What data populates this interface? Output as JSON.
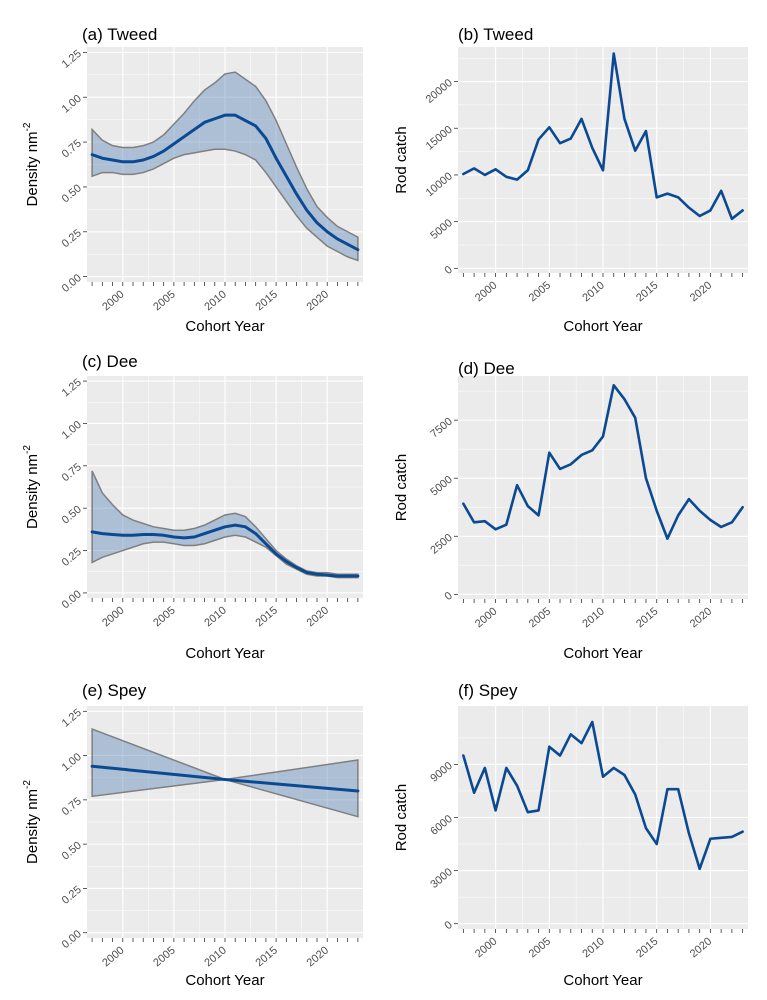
{
  "chart_data": [
    {
      "id": "a",
      "type": "line",
      "title": "(a) Tweed",
      "xlabel": "Cohort Year",
      "ylabel": "Density nm",
      "ylabel_superscript": "-2",
      "xlim": [
        1996.5,
        2023.5
      ],
      "ylim": [
        -0.03,
        1.28
      ],
      "xticks": [
        2000,
        2005,
        2010,
        2015,
        2020
      ],
      "xtick_labels": [
        "2000",
        "2005",
        "2010",
        "2015",
        "2020"
      ],
      "yticks": [
        0,
        0.25,
        0.5,
        0.75,
        1.0,
        1.25
      ],
      "ytick_labels": [
        "0.00",
        "0.25",
        "0.50",
        "0.75",
        "1.00",
        "1.25"
      ],
      "x": [
        1997,
        1998,
        1999,
        2000,
        2001,
        2002,
        2003,
        2004,
        2005,
        2006,
        2007,
        2008,
        2009,
        2010,
        2011,
        2012,
        2013,
        2014,
        2015,
        2016,
        2017,
        2018,
        2019,
        2020,
        2021,
        2022,
        2023
      ],
      "series": [
        {
          "name": "Upper",
          "role": "band_upper",
          "values": [
            0.82,
            0.76,
            0.73,
            0.72,
            0.72,
            0.73,
            0.75,
            0.79,
            0.85,
            0.91,
            0.98,
            1.04,
            1.08,
            1.13,
            1.14,
            1.1,
            1.06,
            0.98,
            0.87,
            0.74,
            0.61,
            0.49,
            0.39,
            0.33,
            0.28,
            0.25,
            0.22
          ]
        },
        {
          "name": "Lower",
          "role": "band_lower",
          "values": [
            0.56,
            0.58,
            0.58,
            0.57,
            0.57,
            0.58,
            0.6,
            0.63,
            0.66,
            0.68,
            0.69,
            0.7,
            0.71,
            0.71,
            0.7,
            0.68,
            0.65,
            0.58,
            0.5,
            0.42,
            0.34,
            0.27,
            0.22,
            0.17,
            0.14,
            0.11,
            0.09
          ]
        },
        {
          "name": "Estimate",
          "role": "line",
          "values": [
            0.68,
            0.66,
            0.65,
            0.64,
            0.64,
            0.65,
            0.67,
            0.7,
            0.74,
            0.78,
            0.82,
            0.86,
            0.88,
            0.9,
            0.9,
            0.87,
            0.84,
            0.77,
            0.66,
            0.56,
            0.46,
            0.37,
            0.3,
            0.25,
            0.21,
            0.18,
            0.15
          ]
        }
      ]
    },
    {
      "id": "b",
      "type": "line",
      "title": "(b) Tweed",
      "xlabel": "Cohort Year",
      "ylabel": "Rod catch",
      "xlim": [
        1996.5,
        2023.5
      ],
      "ylim": [
        -500,
        23700
      ],
      "xticks": [
        2000,
        2005,
        2010,
        2015,
        2020
      ],
      "xtick_labels": [
        "2000",
        "2005",
        "2010",
        "2015",
        "2020"
      ],
      "yticks": [
        0,
        5000,
        10000,
        15000,
        20000
      ],
      "ytick_labels": [
        "0",
        "5000",
        "10000",
        "15000",
        "20000"
      ],
      "x": [
        1997,
        1998,
        1999,
        2000,
        2001,
        2002,
        2003,
        2004,
        2005,
        2006,
        2007,
        2008,
        2009,
        2010,
        2011,
        2012,
        2013,
        2014,
        2015,
        2016,
        2017,
        2018,
        2019,
        2020,
        2021,
        2022,
        2023
      ],
      "series": [
        {
          "name": "Rod catch",
          "role": "line",
          "values": [
            10100,
            10700,
            10000,
            10600,
            9800,
            9500,
            10500,
            13800,
            15100,
            13400,
            13900,
            16000,
            12900,
            10500,
            23000,
            16000,
            12600,
            14700,
            7600,
            8000,
            7600,
            6500,
            5600,
            6200,
            8300,
            5300,
            6200
          ]
        }
      ]
    },
    {
      "id": "c",
      "type": "line",
      "title": "(c) Dee",
      "xlabel": "Cohort Year",
      "ylabel": "Density nm",
      "ylabel_superscript": "-2",
      "xlim": [
        1996.5,
        2023.5
      ],
      "ylim": [
        -0.03,
        1.28
      ],
      "xticks": [
        2000,
        2005,
        2010,
        2015,
        2020
      ],
      "xtick_labels": [
        "2000",
        "2005",
        "2010",
        "2015",
        "2020"
      ],
      "yticks": [
        0,
        0.25,
        0.5,
        0.75,
        1.0,
        1.25
      ],
      "ytick_labels": [
        "0.00",
        "0.25",
        "0.50",
        "0.75",
        "1.00",
        "1.25"
      ],
      "x": [
        1997,
        1998,
        1999,
        2000,
        2001,
        2002,
        2003,
        2004,
        2005,
        2006,
        2007,
        2008,
        2009,
        2010,
        2011,
        2012,
        2013,
        2014,
        2015,
        2016,
        2017,
        2018,
        2019,
        2020,
        2021,
        2022,
        2023
      ],
      "series": [
        {
          "name": "Upper",
          "role": "band_upper",
          "values": [
            0.72,
            0.59,
            0.52,
            0.46,
            0.43,
            0.41,
            0.39,
            0.38,
            0.37,
            0.37,
            0.38,
            0.4,
            0.43,
            0.46,
            0.47,
            0.45,
            0.39,
            0.32,
            0.25,
            0.2,
            0.16,
            0.13,
            0.12,
            0.12,
            0.11,
            0.11,
            0.11
          ]
        },
        {
          "name": "Lower",
          "role": "band_lower",
          "values": [
            0.18,
            0.21,
            0.23,
            0.25,
            0.27,
            0.29,
            0.3,
            0.3,
            0.29,
            0.28,
            0.28,
            0.29,
            0.31,
            0.33,
            0.34,
            0.33,
            0.3,
            0.27,
            0.22,
            0.17,
            0.14,
            0.11,
            0.1,
            0.1,
            0.09,
            0.09,
            0.09
          ]
        },
        {
          "name": "Estimate",
          "role": "line",
          "values": [
            0.36,
            0.35,
            0.345,
            0.34,
            0.34,
            0.345,
            0.345,
            0.34,
            0.33,
            0.325,
            0.33,
            0.35,
            0.37,
            0.39,
            0.4,
            0.39,
            0.35,
            0.29,
            0.23,
            0.185,
            0.15,
            0.12,
            0.11,
            0.105,
            0.1,
            0.1,
            0.1
          ]
        }
      ]
    },
    {
      "id": "d",
      "type": "line",
      "title": "(d) Dee",
      "xlabel": "Cohort Year",
      "ylabel": "Rod catch",
      "xlim": [
        1996.5,
        2023.5
      ],
      "ylim": [
        -200,
        9400
      ],
      "xticks": [
        2000,
        2005,
        2010,
        2015,
        2020
      ],
      "xtick_labels": [
        "2000",
        "2005",
        "2010",
        "2015",
        "2020"
      ],
      "yticks": [
        0,
        2500,
        5000,
        7500
      ],
      "ytick_labels": [
        "0",
        "2500",
        "5000",
        "7500"
      ],
      "x": [
        1997,
        1998,
        1999,
        2000,
        2001,
        2002,
        2003,
        2004,
        2005,
        2006,
        2007,
        2008,
        2009,
        2010,
        2011,
        2012,
        2013,
        2014,
        2015,
        2016,
        2017,
        2018,
        2019,
        2020,
        2021,
        2022,
        2023
      ],
      "series": [
        {
          "name": "Rod catch",
          "role": "line",
          "values": [
            3900,
            3100,
            3150,
            2800,
            3000,
            4700,
            3800,
            3400,
            6100,
            5400,
            5600,
            6000,
            6200,
            6800,
            9000,
            8400,
            7600,
            5000,
            3600,
            2400,
            3400,
            4100,
            3600,
            3200,
            2900,
            3100,
            3750
          ]
        }
      ]
    },
    {
      "id": "e",
      "type": "line",
      "title": "(e) Spey",
      "xlabel": "Cohort Year",
      "ylabel": "Density nm",
      "ylabel_superscript": "-2",
      "xlim": [
        1996.5,
        2023.5
      ],
      "ylim": [
        -0.03,
        1.28
      ],
      "xticks": [
        2000,
        2005,
        2010,
        2015,
        2020
      ],
      "xtick_labels": [
        "2000",
        "2005",
        "2010",
        "2015",
        "2020"
      ],
      "yticks": [
        0,
        0.25,
        0.5,
        0.75,
        1.0,
        1.25
      ],
      "ytick_labels": [
        "0.00",
        "0.25",
        "0.50",
        "0.75",
        "1.00",
        "1.25"
      ],
      "x": [
        1997,
        2010,
        2023
      ],
      "series": [
        {
          "name": "Upper",
          "role": "band_upper",
          "values": [
            1.15,
            0.865,
            0.975
          ]
        },
        {
          "name": "Lower",
          "role": "band_lower",
          "values": [
            0.77,
            0.865,
            0.655
          ]
        },
        {
          "name": "Estimate",
          "role": "line",
          "values": [
            0.94,
            0.865,
            0.8
          ]
        }
      ]
    },
    {
      "id": "f",
      "type": "line",
      "title": "(f) Spey",
      "xlabel": "Cohort Year",
      "ylabel": "Rod catch",
      "xlim": [
        1996.5,
        2023.5
      ],
      "ylim": [
        -300,
        12300
      ],
      "xticks": [
        2000,
        2005,
        2010,
        2015,
        2020
      ],
      "xtick_labels": [
        "2000",
        "2005",
        "2010",
        "2015",
        "2020"
      ],
      "yticks": [
        0,
        3000,
        6000,
        9000
      ],
      "ytick_labels": [
        "0",
        "3000",
        "6000",
        "9000"
      ],
      "x": [
        1997,
        1998,
        1999,
        2000,
        2001,
        2002,
        2003,
        2004,
        2005,
        2006,
        2007,
        2008,
        2009,
        2010,
        2011,
        2012,
        2013,
        2014,
        2015,
        2016,
        2017,
        2018,
        2019,
        2020,
        2021,
        2022,
        2023
      ],
      "series": [
        {
          "name": "Rod catch",
          "role": "line",
          "values": [
            9500,
            7400,
            8800,
            6400,
            8800,
            7800,
            6300,
            6400,
            10000,
            9500,
            10700,
            10200,
            11400,
            8300,
            8800,
            8400,
            7300,
            5400,
            4500,
            7600,
            7600,
            5100,
            3100,
            4800,
            4850,
            4900,
            5200
          ]
        }
      ]
    }
  ]
}
